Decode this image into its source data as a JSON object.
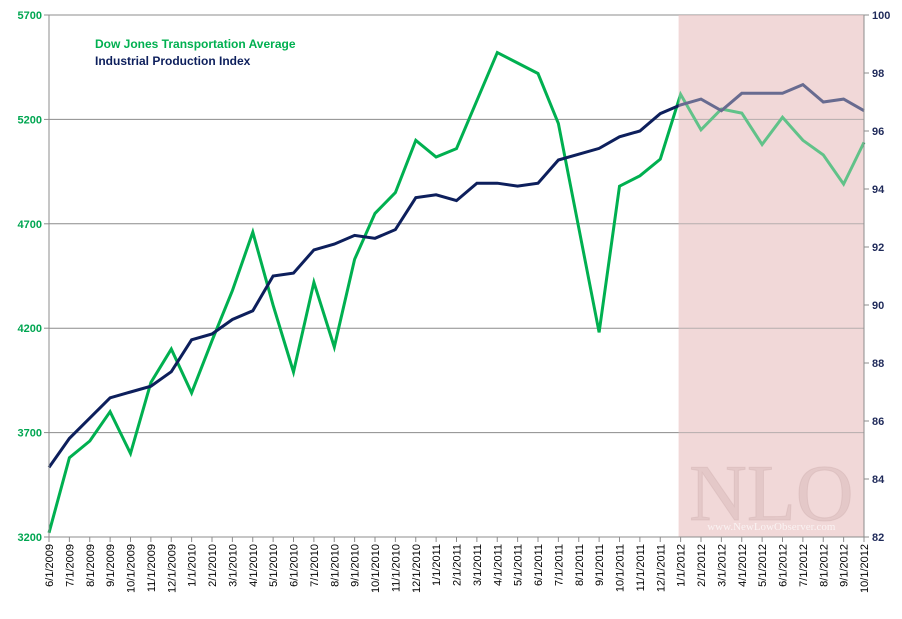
{
  "chart_data": {
    "type": "line",
    "title": "",
    "xlabel": "",
    "ylabel": "",
    "y2label": "",
    "left_axis": {
      "min": 3200,
      "max": 5700,
      "ticks": [
        3200,
        3700,
        4200,
        4700,
        5200,
        5700
      ],
      "color": "#00a651"
    },
    "right_axis": {
      "min": 82,
      "max": 100,
      "ticks": [
        82,
        84,
        86,
        88,
        90,
        92,
        94,
        96,
        98,
        100
      ],
      "color": "#1f2a5a"
    },
    "x": [
      "6/1/2009",
      "7/1/2009",
      "8/1/2009",
      "9/1/2009",
      "10/1/2009",
      "11/1/2009",
      "12/1/2009",
      "1/1/2010",
      "2/1/2010",
      "3/1/2010",
      "4/1/2010",
      "5/1/2010",
      "6/1/2010",
      "7/1/2010",
      "8/1/2010",
      "9/1/2010",
      "10/1/2010",
      "11/1/2010",
      "12/1/2010",
      "1/1/2011",
      "2/1/2011",
      "3/1/2011",
      "4/1/2011",
      "5/1/2011",
      "6/1/2011",
      "7/1/2011",
      "8/1/2011",
      "9/1/2011",
      "10/1/2011",
      "11/1/2011",
      "12/1/2011",
      "1/1/2012",
      "2/1/2012",
      "3/1/2012",
      "4/1/2012",
      "5/1/2012",
      "6/1/2012",
      "7/1/2012",
      "8/1/2012",
      "9/1/2012",
      "10/1/2012"
    ],
    "grid": true,
    "legend": "top-left",
    "shaded_region": {
      "from": "1/1/2012",
      "to": "10/1/2012",
      "color": "#dfa0a0",
      "opacity": 0.45
    },
    "series": [
      {
        "name": "Dow Jones Transportation Average",
        "axis": "left",
        "color": "#00b050",
        "values": [
          3220,
          3580,
          3660,
          3800,
          3600,
          3940,
          4100,
          3890,
          4140,
          4380,
          4660,
          4310,
          3990,
          4420,
          4110,
          4530,
          4750,
          4850,
          5100,
          5020,
          5060,
          5290,
          5520,
          5470,
          5420,
          5180,
          4680,
          4180,
          4880,
          4930,
          5010,
          5320,
          5150,
          5250,
          5230,
          5080,
          5210,
          5100,
          5030,
          4890,
          5090
        ]
      },
      {
        "name": "Industrial Production Index",
        "axis": "right",
        "color": "#0d1f5c",
        "values": [
          84.4,
          85.4,
          86.1,
          86.8,
          87.0,
          87.2,
          87.7,
          88.8,
          89.0,
          89.5,
          89.8,
          91.0,
          91.1,
          91.9,
          92.1,
          92.4,
          92.3,
          92.6,
          93.7,
          93.8,
          93.6,
          94.2,
          94.2,
          94.1,
          94.2,
          95.0,
          95.2,
          95.4,
          95.8,
          96.0,
          96.6,
          96.9,
          97.1,
          96.7,
          97.3,
          97.3,
          97.3,
          97.6,
          97.0,
          97.1,
          96.7
        ]
      }
    ],
    "watermark": {
      "logo_text": "NLO",
      "url": "www.NewLowObserver.com"
    }
  }
}
